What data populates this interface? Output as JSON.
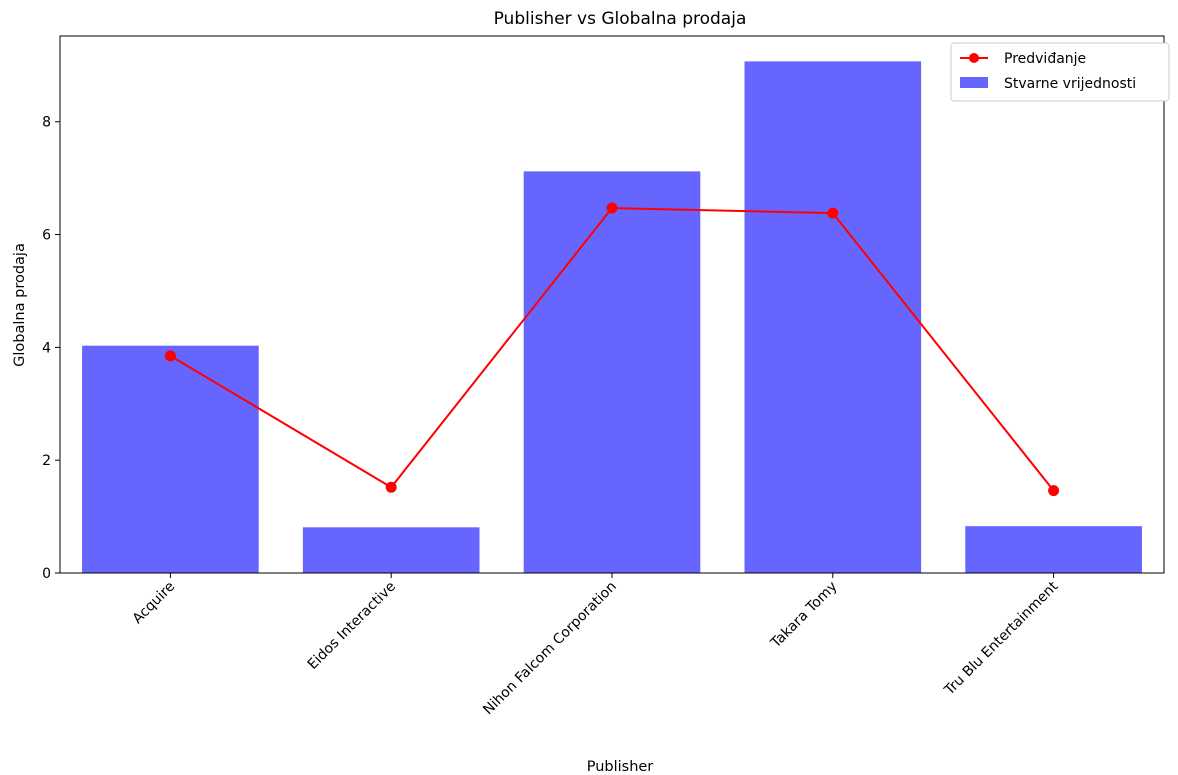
{
  "chart_data": {
    "type": "bar",
    "title": "Publisher vs Globalna prodaja",
    "xlabel": "Publisher",
    "ylabel": "Globalna prodaja",
    "categories": [
      "Acquire",
      "Eidos Interactive",
      "Nihon Falcom Corporation",
      "Takara Tomy",
      "Tru Blu Entertainment"
    ],
    "series": [
      {
        "name": "Stvarne vrijednosti",
        "kind": "bar",
        "color": "#6666ff",
        "values": [
          4.03,
          0.81,
          7.12,
          9.07,
          0.83
        ]
      },
      {
        "name": "Predviđanje",
        "kind": "line",
        "color": "#ff0000",
        "values": [
          3.85,
          1.52,
          6.47,
          6.38,
          1.46
        ]
      }
    ],
    "yticks": [
      0,
      2,
      4,
      6,
      8
    ],
    "ylim": [
      0,
      9.52
    ],
    "grid": false,
    "legend": "top-right"
  }
}
